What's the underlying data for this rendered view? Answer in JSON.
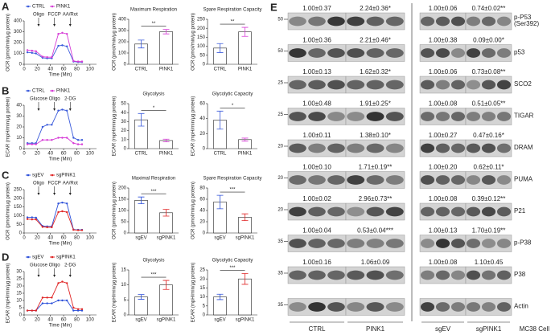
{
  "chart_data": [
    {
      "type": "line",
      "panel": "A",
      "ylabel": "OCR (pmol/min/μg protein)",
      "xlabel": "Time (Min)",
      "xlim": [
        0,
        110
      ],
      "xticks": [
        0,
        20,
        40,
        60,
        80,
        100
      ],
      "ylim": [
        0,
        400
      ],
      "yticks": [
        0,
        100,
        200,
        300,
        400
      ],
      "injections": [
        {
          "label": "Oligo",
          "x": 22
        },
        {
          "label": "FCCP",
          "x": 46
        },
        {
          "label": "AA/Rot",
          "x": 70
        }
      ],
      "x": [
        5,
        12,
        18,
        28,
        35,
        42,
        52,
        58,
        65,
        75,
        82,
        88
      ],
      "series": [
        {
          "name": "CTRL",
          "color": "#3b5bdb",
          "values": [
            110,
            105,
            100,
            60,
            55,
            55,
            170,
            175,
            165,
            25,
            20,
            20
          ]
        },
        {
          "name": "PINK1",
          "color": "#d63bd6",
          "values": [
            130,
            125,
            120,
            70,
            65,
            65,
            280,
            290,
            280,
            30,
            25,
            25
          ]
        }
      ]
    },
    {
      "type": "bar",
      "title": "Maximum Respiration",
      "ylabel": "OCR (pmol/min/μg protein)",
      "ylim": [
        0,
        400
      ],
      "yticks": [
        0,
        100,
        200,
        300,
        400
      ],
      "categories": [
        "CTRL",
        "PINK1"
      ],
      "values": [
        180,
        290
      ],
      "errors": [
        35,
        20
      ],
      "colors": [
        "#3b5bdb",
        "#d63bd6"
      ],
      "significance": "**"
    },
    {
      "type": "bar",
      "title": "Spare Respiration Capacity",
      "ylabel": "OCR (pmol/min/μg protein)",
      "ylim": [
        0,
        250
      ],
      "yticks": [
        0,
        50,
        100,
        150,
        200,
        250
      ],
      "categories": [
        "CTRL",
        "PINK1"
      ],
      "values": [
        90,
        180
      ],
      "errors": [
        25,
        25
      ],
      "colors": [
        "#3b5bdb",
        "#d63bd6"
      ],
      "significance": "**"
    },
    {
      "type": "line",
      "panel": "B",
      "ylabel": "ECAR (mpH/min/μg protein)",
      "xlabel": "Time (Min)",
      "xlim": [
        0,
        110
      ],
      "xticks": [
        0,
        20,
        40,
        60,
        80,
        100
      ],
      "ylim": [
        0,
        40
      ],
      "yticks": [
        0,
        10,
        20,
        30,
        40
      ],
      "injections": [
        {
          "label": "Glucose",
          "x": 22
        },
        {
          "label": "Oligo",
          "x": 46
        },
        {
          "label": "2-DG",
          "x": 70
        }
      ],
      "x": [
        5,
        12,
        18,
        28,
        35,
        42,
        52,
        58,
        65,
        75,
        82,
        88
      ],
      "series": [
        {
          "name": "CTRL",
          "color": "#3b5bdb",
          "values": [
            5,
            5,
            5,
            20,
            22,
            22,
            35,
            36,
            35,
            10,
            8,
            8
          ]
        },
        {
          "name": "PINK1",
          "color": "#d63bd6",
          "values": [
            4,
            4,
            4,
            8,
            8,
            8,
            10,
            10,
            10,
            5,
            4,
            4
          ]
        }
      ]
    },
    {
      "type": "bar",
      "title": "Glycolysis",
      "ylabel": "ECAR (mpH/min/μg protein)",
      "ylim": [
        0,
        50
      ],
      "yticks": [
        0,
        10,
        20,
        30,
        40,
        50
      ],
      "categories": [
        "CTRL",
        "PINK1"
      ],
      "values": [
        32,
        9
      ],
      "errors": [
        7,
        1.5
      ],
      "colors": [
        "#3b5bdb",
        "#d63bd6"
      ],
      "significance": "*"
    },
    {
      "type": "bar",
      "title": "Glycolytic Capacity",
      "ylabel": "ECAR (mpH/min/μg protein)",
      "ylim": [
        0,
        60
      ],
      "yticks": [
        0,
        20,
        40,
        60
      ],
      "categories": [
        "CTRL",
        "PINK1"
      ],
      "values": [
        38,
        12
      ],
      "errors": [
        12,
        2
      ],
      "colors": [
        "#3b5bdb",
        "#d63bd6"
      ],
      "significance": "*"
    },
    {
      "type": "line",
      "panel": "C",
      "ylabel": "OCR (pmol/min/μg protein)",
      "xlabel": "Time (Min)",
      "xlim": [
        0,
        110
      ],
      "xticks": [
        0,
        20,
        40,
        60,
        80,
        100
      ],
      "ylim": [
        0,
        250
      ],
      "yticks": [
        0,
        50,
        100,
        150,
        200,
        250
      ],
      "injections": [
        {
          "label": "Oligo",
          "x": 22
        },
        {
          "label": "FCCP",
          "x": 46
        },
        {
          "label": "AA/Rot",
          "x": 70
        }
      ],
      "x": [
        5,
        12,
        18,
        28,
        35,
        42,
        52,
        58,
        65,
        75,
        82,
        88
      ],
      "series": [
        {
          "name": "sgEV",
          "color": "#2b4fd9",
          "values": [
            90,
            90,
            88,
            40,
            38,
            38,
            170,
            175,
            170,
            20,
            18,
            18
          ]
        },
        {
          "name": "sgPINK1",
          "color": "#e02424",
          "values": [
            80,
            78,
            78,
            35,
            33,
            33,
            120,
            125,
            120,
            18,
            16,
            16
          ]
        }
      ]
    },
    {
      "type": "bar",
      "title": "Maximal Respiration",
      "ylabel": "OCR (pmol/min/μg protein)",
      "ylim": [
        0,
        200
      ],
      "yticks": [
        0,
        50,
        100,
        150,
        200
      ],
      "categories": [
        "sgEV",
        "sgPINK1"
      ],
      "values": [
        145,
        90
      ],
      "errors": [
        15,
        15
      ],
      "colors": [
        "#2b4fd9",
        "#e02424"
      ],
      "significance": "***"
    },
    {
      "type": "bar",
      "title": "Spare Respiration Capacity",
      "ylabel": "OCR (pmol/min/μg protein)",
      "ylim": [
        0,
        80
      ],
      "yticks": [
        0,
        20,
        40,
        60,
        80
      ],
      "categories": [
        "sgEV",
        "sgPINK1"
      ],
      "values": [
        55,
        28
      ],
      "errors": [
        12,
        6
      ],
      "colors": [
        "#2b4fd9",
        "#e02424"
      ],
      "significance": "***"
    },
    {
      "type": "line",
      "panel": "D",
      "ylabel": "ECAR (mpH/min/μg protein)",
      "xlabel": "Time (Min)",
      "xlim": [
        0,
        110
      ],
      "xticks": [
        0,
        20,
        40,
        60,
        80,
        100
      ],
      "ylim": [
        0,
        30
      ],
      "yticks": [
        0,
        5,
        10,
        15,
        20,
        25,
        30
      ],
      "injections": [
        {
          "label": "Glucose",
          "x": 22
        },
        {
          "label": "Oligo",
          "x": 46
        },
        {
          "label": "2-DG",
          "x": 70
        }
      ],
      "x": [
        5,
        12,
        18,
        28,
        35,
        42,
        52,
        58,
        65,
        75,
        82,
        88
      ],
      "series": [
        {
          "name": "sgEV",
          "color": "#2b4fd9",
          "values": [
            3,
            3,
            3,
            8,
            8,
            8,
            10,
            10,
            10,
            3,
            3,
            3
          ]
        },
        {
          "name": "sgPINK1",
          "color": "#e02424",
          "values": [
            3,
            3,
            3,
            12,
            12,
            12,
            22,
            23,
            22,
            5,
            4,
            4
          ]
        }
      ]
    },
    {
      "type": "bar",
      "title": "Glycolysis",
      "ylabel": "ECAR (mpH/min/μg protein)",
      "ylim": [
        0,
        15
      ],
      "yticks": [
        0,
        5,
        10,
        15
      ],
      "categories": [
        "sgEV",
        "sgPINK1"
      ],
      "values": [
        6,
        10
      ],
      "errors": [
        0.8,
        1.5
      ],
      "colors": [
        "#2b4fd9",
        "#e02424"
      ],
      "significance": "***"
    },
    {
      "type": "bar",
      "title": "Glycolytic Capacity",
      "ylabel": "ECAR (mpH/min/μg protein)",
      "ylim": [
        0,
        25
      ],
      "yticks": [
        0,
        5,
        10,
        15,
        20,
        25
      ],
      "categories": [
        "sgEV",
        "sgPINK1"
      ],
      "values": [
        10,
        20
      ],
      "errors": [
        1.5,
        3
      ],
      "colors": [
        "#2b4fd9",
        "#e02424"
      ],
      "significance": "***"
    }
  ],
  "blots": {
    "panel": "E",
    "cell_line": "MC38 Cell",
    "left": {
      "groups": [
        "CTRL",
        "PINK1"
      ],
      "markers": [
        50,
        50,
        25,
        25,
        20,
        20,
        20,
        35,
        35,
        35
      ],
      "rows": [
        [
          "1.00±0.37",
          "2.24±0.36*"
        ],
        [
          "1.00±0.36",
          "2.21±0.46*"
        ],
        [
          "1.00±0.13",
          "1.62±0.32*"
        ],
        [
          "1.00±0.48",
          "1.91±0.25*"
        ],
        [
          "1.00±0.11",
          "1.38±0.10*"
        ],
        [
          "1.00±0.10",
          "1.71±0.19**"
        ],
        [
          "1.00±0.02",
          "2.96±0.73**"
        ],
        [
          "1.00±0.04",
          "0.53±0.04***"
        ],
        [
          "1.00±0.16",
          "1.06±0.09"
        ]
      ]
    },
    "right": {
      "groups": [
        "sgEV",
        "sgPINK1"
      ],
      "rows": [
        [
          "1.00±0.06",
          "0.74±0.02**"
        ],
        [
          "1.00±0.38",
          "0.09±0.00*"
        ],
        [
          "1.00±0.06",
          "0.73±0.08**"
        ],
        [
          "1.00±0.08",
          "0.51±0.05**"
        ],
        [
          "1.00±0.27",
          "0.47±0.16*"
        ],
        [
          "1.00±0.20",
          "0.62±0.11*"
        ],
        [
          "1.00±0.08",
          "0.39±0.12**"
        ],
        [
          "1.00±0.13",
          "1.70±0.19**"
        ],
        [
          "1.00±0.08",
          "1.10±0.45"
        ]
      ],
      "proteins": [
        [
          "p-P53",
          "(Ser392)"
        ],
        [
          "p53"
        ],
        [
          "SCO2"
        ],
        [
          "TIGAR"
        ],
        [
          "DRAM"
        ],
        [
          "PUMA"
        ],
        [
          "P21"
        ],
        [
          "p-P38"
        ],
        [
          "P38"
        ],
        [
          "Actin"
        ]
      ]
    }
  }
}
